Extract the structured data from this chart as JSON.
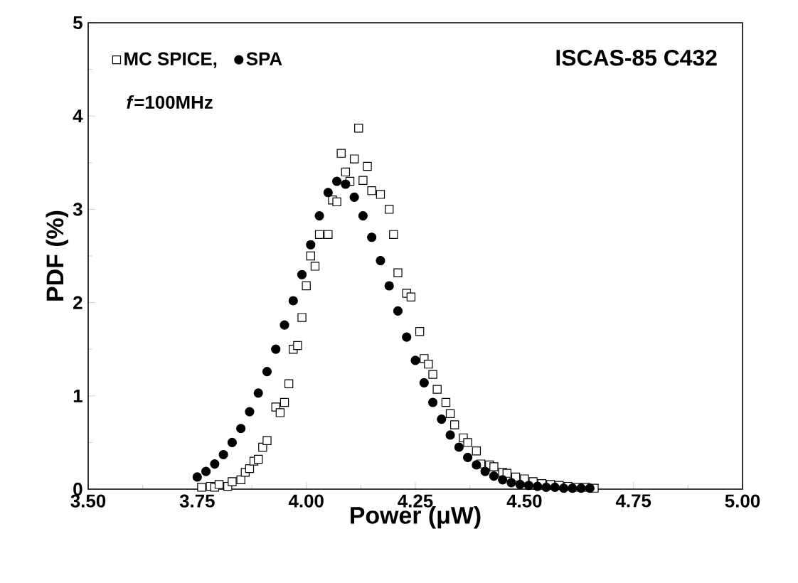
{
  "chart_data": {
    "type": "scatter",
    "xlabel": "Power (μW)",
    "ylabel": "PDF (%)",
    "annotations": [
      "ISCAS-85 C432",
      "*f*=100MHz"
    ],
    "xlim": [
      3.5,
      5.0
    ],
    "xticks": [
      {
        "value": 3.5,
        "label": "3.50"
      },
      {
        "value": 3.75,
        "label": "3.75"
      },
      {
        "value": 4.0,
        "label": "4.00"
      },
      {
        "value": 4.25,
        "label": "4.25"
      },
      {
        "value": 4.5,
        "label": "4.50"
      },
      {
        "value": 4.75,
        "label": "4.75"
      },
      {
        "value": 5.0,
        "label": "5.00"
      }
    ],
    "ylim": [
      0,
      5
    ],
    "yticks": [
      0,
      1,
      2,
      3,
      4,
      5
    ],
    "legend": "top left",
    "grid": false,
    "series": [
      {
        "name": "MC SPICE,",
        "color": "#000000",
        "marker": "square",
        "x": [
          3.76,
          3.78,
          3.79,
          3.8,
          3.82,
          3.83,
          3.85,
          3.86,
          3.87,
          3.88,
          3.89,
          3.9,
          3.91,
          3.93,
          3.94,
          3.95,
          3.96,
          3.97,
          3.98,
          3.99,
          4.0,
          4.01,
          4.02,
          4.03,
          4.05,
          4.06,
          4.07,
          4.08,
          4.09,
          4.1,
          4.11,
          4.12,
          4.13,
          4.14,
          4.15,
          4.17,
          4.19,
          4.2,
          4.21,
          4.23,
          4.24,
          4.26,
          4.27,
          4.28,
          4.29,
          4.3,
          4.32,
          4.33,
          4.34,
          4.36,
          4.37,
          4.39,
          4.4,
          4.42,
          4.43,
          4.45,
          4.46,
          4.48,
          4.5,
          4.52,
          4.54,
          4.56,
          4.58,
          4.6,
          4.62,
          4.64,
          4.66
        ],
        "values": [
          0.02,
          0.03,
          0.02,
          0.05,
          0.03,
          0.08,
          0.1,
          0.18,
          0.22,
          0.3,
          0.32,
          0.45,
          0.52,
          0.88,
          0.82,
          0.93,
          1.13,
          1.5,
          1.54,
          1.84,
          2.18,
          2.5,
          2.39,
          2.73,
          2.73,
          3.1,
          3.08,
          3.6,
          3.4,
          3.3,
          3.54,
          3.87,
          3.31,
          3.46,
          3.2,
          3.16,
          3.0,
          2.73,
          2.32,
          2.1,
          2.06,
          1.69,
          1.4,
          1.34,
          1.23,
          1.07,
          0.93,
          0.81,
          0.69,
          0.55,
          0.5,
          0.41,
          0.27,
          0.26,
          0.24,
          0.18,
          0.17,
          0.13,
          0.11,
          0.08,
          0.06,
          0.05,
          0.04,
          0.03,
          0.02,
          0.02,
          0.01
        ]
      },
      {
        "name": "SPA",
        "color": "#000000",
        "marker": "circle",
        "x": [
          3.75,
          3.77,
          3.79,
          3.81,
          3.83,
          3.85,
          3.87,
          3.89,
          3.91,
          3.93,
          3.95,
          3.97,
          3.99,
          4.01,
          4.03,
          4.05,
          4.07,
          4.09,
          4.11,
          4.13,
          4.15,
          4.17,
          4.19,
          4.21,
          4.23,
          4.25,
          4.27,
          4.29,
          4.31,
          4.33,
          4.35,
          4.37,
          4.39,
          4.41,
          4.43,
          4.45,
          4.47,
          4.49,
          4.51,
          4.53,
          4.55,
          4.57,
          4.59,
          4.61,
          4.63,
          4.65
        ],
        "values": [
          0.13,
          0.19,
          0.27,
          0.37,
          0.5,
          0.65,
          0.83,
          1.03,
          1.26,
          1.5,
          1.76,
          2.02,
          2.3,
          2.62,
          2.93,
          3.18,
          3.3,
          3.27,
          3.13,
          2.93,
          2.7,
          2.45,
          2.18,
          1.91,
          1.63,
          1.38,
          1.14,
          0.93,
          0.75,
          0.58,
          0.45,
          0.34,
          0.26,
          0.19,
          0.14,
          0.1,
          0.07,
          0.05,
          0.04,
          0.03,
          0.02,
          0.02,
          0.01,
          0.01,
          0.01,
          0.01
        ]
      }
    ]
  }
}
